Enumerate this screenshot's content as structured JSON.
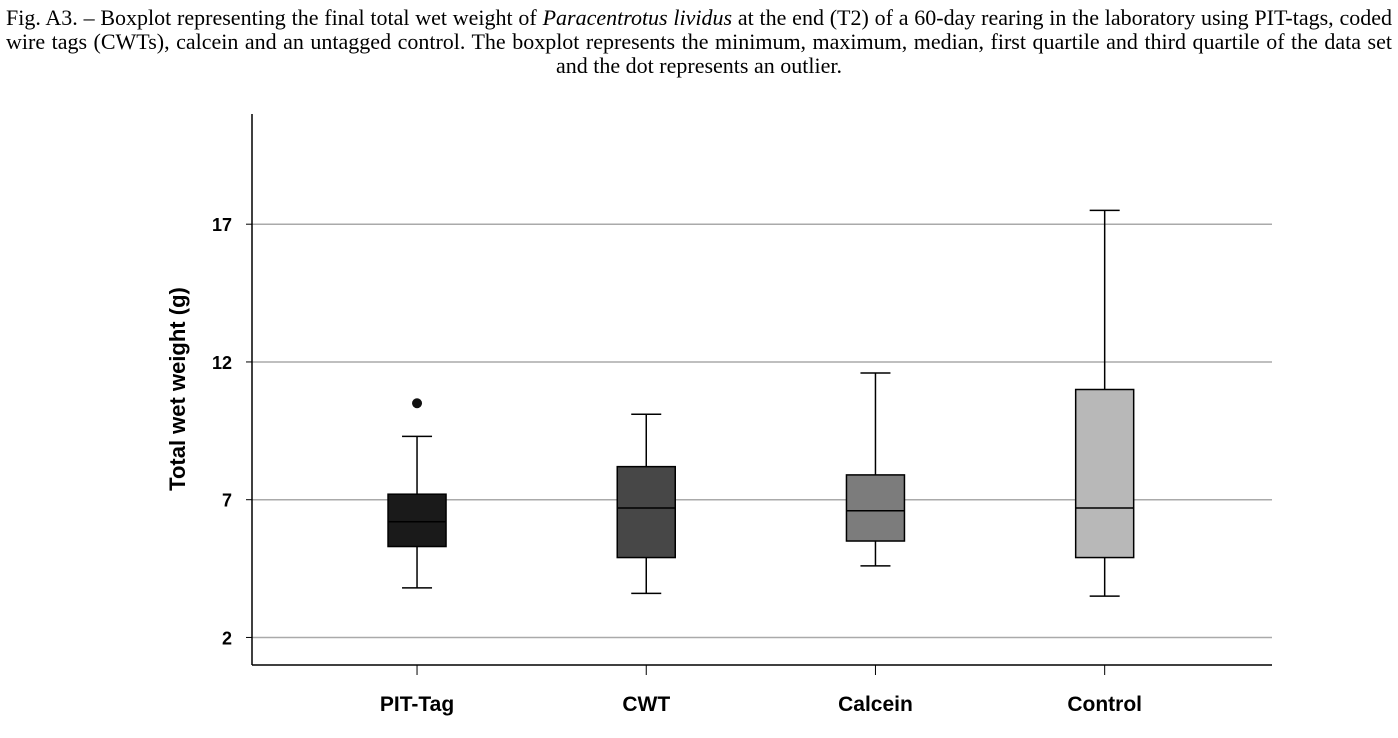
{
  "caption": {
    "part1": "Fig. A3. – Boxplot representing the final total wet weight of ",
    "species": "Paracentrotus lividus",
    "part2": " at the end (T2) of a 60-day rearing in the laboratory using PIT-tags, coded wire tags (CWTs), calcein and an untagged control. The boxplot represents the minimum, maximum, median, first quartile and third quartile of the data set and the dot represents an outlier."
  },
  "chart_data": {
    "type": "box",
    "title": "",
    "xlabel": "",
    "ylabel": "Total wet weight (g)",
    "ylim": [
      1.0,
      21.0
    ],
    "yticks": [
      2,
      7,
      12,
      17
    ],
    "grid": "horizontal at ticks",
    "categories": [
      "PIT-Tag",
      "CWT",
      "Calcein",
      "Control"
    ],
    "boxes": [
      {
        "name": "PIT-Tag",
        "min": 3.8,
        "q1": 5.3,
        "median": 6.2,
        "q3": 7.2,
        "max": 9.3,
        "outliers": [
          10.5
        ],
        "color": "#1a1a1a"
      },
      {
        "name": "CWT",
        "min": 3.6,
        "q1": 4.9,
        "median": 6.7,
        "q3": 8.2,
        "max": 10.1,
        "outliers": [],
        "color": "#474747"
      },
      {
        "name": "Calcein",
        "min": 4.6,
        "q1": 5.5,
        "median": 6.6,
        "q3": 7.9,
        "max": 11.6,
        "outliers": [],
        "color": "#7c7c7c"
      },
      {
        "name": "Control",
        "min": 3.5,
        "q1": 4.9,
        "median": 6.7,
        "q3": 11.0,
        "max": 17.5,
        "outliers": [],
        "color": "#b8b8b8"
      }
    ]
  }
}
